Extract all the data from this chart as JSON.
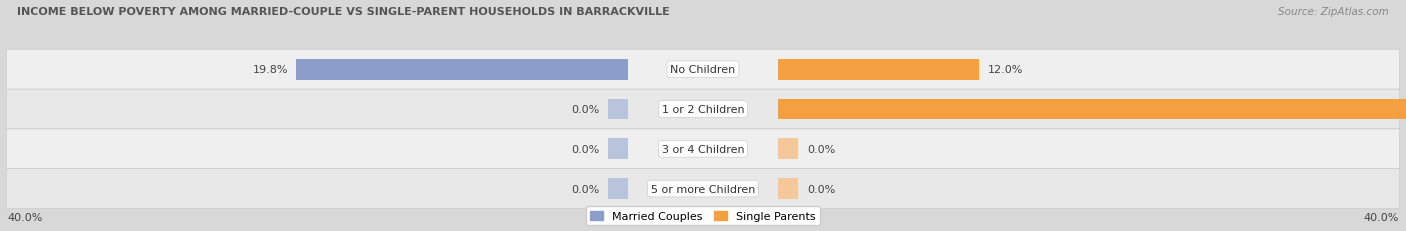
{
  "title": "INCOME BELOW POVERTY AMONG MARRIED-COUPLE VS SINGLE-PARENT HOUSEHOLDS IN BARRACKVILLE",
  "source": "Source: ZipAtlas.com",
  "categories": [
    "No Children",
    "1 or 2 Children",
    "3 or 4 Children",
    "5 or more Children"
  ],
  "married_values": [
    19.8,
    0.0,
    0.0,
    0.0
  ],
  "single_values": [
    12.0,
    40.0,
    0.0,
    0.0
  ],
  "axis_max": 40.0,
  "married_color": "#8B9DC8",
  "married_color_zero": "#B8C4DC",
  "single_color": "#F4A040",
  "single_color_zero": "#F4C898",
  "bar_height": 0.52,
  "row_bg_colors": [
    "#EFEFEF",
    "#E8E8E8",
    "#EFEFEF",
    "#E8E8E8"
  ],
  "row_edge_color": "#DDDDDD",
  "bg_color": "#D8D8D8",
  "legend_married": "Married Couples",
  "legend_single": "Single Parents",
  "x_axis_left_label": "40.0%",
  "x_axis_right_label": "40.0%",
  "title_color": "#555555",
  "source_color": "#888888",
  "label_color": "#444444",
  "zero_stub": 1.2
}
